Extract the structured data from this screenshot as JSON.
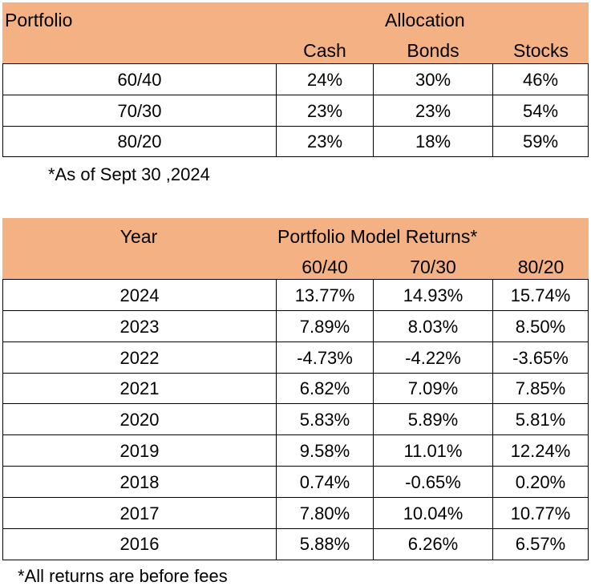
{
  "allocation_table": {
    "headers": {
      "portfolio": "Portfolio",
      "group": "Allocation",
      "columns": [
        "Cash",
        "Bonds",
        "Stocks"
      ]
    },
    "rows": [
      {
        "portfolio": "60/40",
        "values": [
          "24%",
          "30%",
          "46%"
        ]
      },
      {
        "portfolio": "70/30",
        "values": [
          "23%",
          "23%",
          "54%"
        ]
      },
      {
        "portfolio": "80/20",
        "values": [
          "23%",
          "18%",
          "59%"
        ]
      }
    ],
    "note": "*As of Sept 30 ,2024"
  },
  "returns_table": {
    "headers": {
      "year": "Year",
      "group": "Portfolio Model Returns*",
      "columns": [
        "60/40",
        "70/30",
        "80/20"
      ]
    },
    "rows": [
      {
        "year": "2024",
        "values": [
          "13.77%",
          "14.93%",
          "15.74%"
        ]
      },
      {
        "year": "2023",
        "values": [
          "7.89%",
          "8.03%",
          "8.50%"
        ]
      },
      {
        "year": "2022",
        "values": [
          "-4.73%",
          "-4.22%",
          "-3.65%"
        ]
      },
      {
        "year": "2021",
        "values": [
          "6.82%",
          "7.09%",
          "7.85%"
        ]
      },
      {
        "year": "2020",
        "values": [
          "5.83%",
          "5.89%",
          "5.81%"
        ]
      },
      {
        "year": "2019",
        "values": [
          "9.58%",
          "11.01%",
          "12.24%"
        ]
      },
      {
        "year": "2018",
        "values": [
          "0.74%",
          "-0.65%",
          "0.20%"
        ]
      },
      {
        "year": "2017",
        "values": [
          "7.80%",
          "10.04%",
          "10.77%"
        ]
      },
      {
        "year": "2016",
        "values": [
          "5.88%",
          "6.26%",
          "6.57%"
        ]
      }
    ],
    "note": "*All returns are before fees"
  },
  "colors": {
    "header_fill": "#F4B183",
    "border": "#000000",
    "text": "#000000"
  }
}
